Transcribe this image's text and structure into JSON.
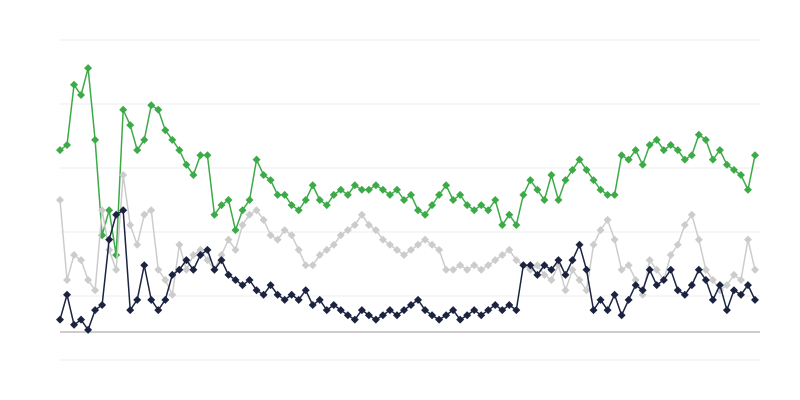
{
  "chart_data": {
    "type": "line",
    "x": [
      0,
      1,
      2,
      3,
      4,
      5,
      6,
      7,
      8,
      9,
      10,
      11,
      12,
      13,
      14,
      15,
      16,
      17,
      18,
      19,
      20,
      21,
      22,
      23,
      24,
      25,
      26,
      27,
      28,
      29,
      30,
      31,
      32,
      33,
      34,
      35,
      36,
      37,
      38,
      39,
      40,
      41,
      42,
      43,
      44,
      45,
      46,
      47,
      48,
      49,
      50,
      51,
      52,
      53,
      54,
      55,
      56,
      57,
      58,
      59,
      60,
      61,
      62,
      63,
      64,
      65,
      66,
      67,
      68,
      69,
      70,
      71,
      72,
      73,
      74,
      75,
      76,
      77,
      78,
      79,
      80,
      81,
      82,
      83,
      84,
      85,
      86,
      87,
      88,
      89,
      90,
      91,
      92,
      93,
      94,
      95,
      96,
      97,
      98,
      99
    ],
    "xlim": [
      0,
      99
    ],
    "ylim": [
      0,
      5
    ],
    "yticks": [
      0,
      1,
      2,
      3,
      4,
      5
    ],
    "grid": true,
    "series": [
      {
        "color": "#3cab47",
        "values": [
          3.28,
          3.36,
          4.3,
          4.14,
          4.56,
          3.44,
          1.95,
          2.34,
          1.64,
          3.91,
          3.67,
          3.28,
          3.44,
          3.98,
          3.91,
          3.59,
          3.44,
          3.28,
          3.05,
          2.89,
          3.2,
          3.2,
          2.27,
          2.42,
          2.5,
          2.03,
          2.34,
          2.5,
          3.13,
          2.89,
          2.81,
          2.58,
          2.58,
          2.42,
          2.34,
          2.5,
          2.73,
          2.5,
          2.42,
          2.58,
          2.66,
          2.58,
          2.73,
          2.66,
          2.66,
          2.73,
          2.66,
          2.58,
          2.66,
          2.5,
          2.58,
          2.34,
          2.27,
          2.42,
          2.58,
          2.73,
          2.5,
          2.58,
          2.42,
          2.34,
          2.42,
          2.34,
          2.5,
          2.11,
          2.27,
          2.11,
          2.58,
          2.81,
          2.66,
          2.5,
          2.89,
          2.5,
          2.81,
          2.97,
          3.13,
          2.97,
          2.81,
          2.66,
          2.58,
          2.58,
          3.2,
          3.13,
          3.28,
          3.05,
          3.36,
          3.44,
          3.28,
          3.36,
          3.28,
          3.13,
          3.2,
          3.52,
          3.44,
          3.13,
          3.28,
          3.05,
          2.97,
          2.89,
          2.66,
          3.2
        ]
      },
      {
        "color": "#cccccc",
        "values": [
          2.5,
          1.25,
          1.64,
          1.56,
          1.25,
          1.09,
          2.34,
          1.72,
          1.41,
          2.89,
          2.11,
          1.8,
          2.27,
          2.34,
          1.41,
          1.25,
          1.02,
          1.8,
          1.41,
          1.64,
          1.72,
          1.56,
          1.41,
          1.64,
          1.88,
          1.72,
          2.11,
          2.27,
          2.34,
          2.19,
          1.95,
          1.88,
          2.03,
          1.95,
          1.72,
          1.48,
          1.48,
          1.64,
          1.72,
          1.8,
          1.95,
          2.03,
          2.11,
          2.27,
          2.11,
          2.03,
          1.88,
          1.8,
          1.72,
          1.64,
          1.72,
          1.8,
          1.88,
          1.8,
          1.72,
          1.41,
          1.41,
          1.48,
          1.41,
          1.48,
          1.41,
          1.48,
          1.56,
          1.64,
          1.72,
          1.56,
          1.48,
          1.41,
          1.48,
          1.33,
          1.25,
          1.48,
          1.09,
          1.41,
          1.25,
          1.09,
          1.8,
          2.03,
          2.19,
          1.88,
          1.41,
          1.48,
          1.25,
          1.02,
          1.56,
          1.41,
          1.25,
          1.64,
          1.8,
          2.11,
          2.27,
          1.88,
          1.41,
          1.25,
          1.09,
          1.17,
          1.33,
          1.25,
          1.88,
          1.41
        ]
      },
      {
        "color": "#1b2340",
        "values": [
          0.63,
          1.02,
          0.55,
          0.63,
          0.47,
          0.78,
          0.86,
          1.88,
          2.27,
          2.34,
          0.78,
          0.94,
          1.48,
          0.94,
          0.78,
          0.94,
          1.33,
          1.41,
          1.56,
          1.41,
          1.64,
          1.72,
          1.41,
          1.56,
          1.33,
          1.25,
          1.17,
          1.25,
          1.09,
          1.02,
          1.17,
          1.02,
          0.94,
          1.02,
          0.94,
          1.09,
          0.86,
          0.94,
          0.78,
          0.86,
          0.78,
          0.7,
          0.63,
          0.78,
          0.7,
          0.63,
          0.7,
          0.78,
          0.7,
          0.78,
          0.86,
          0.94,
          0.78,
          0.7,
          0.63,
          0.7,
          0.78,
          0.63,
          0.7,
          0.78,
          0.7,
          0.78,
          0.86,
          0.78,
          0.86,
          0.78,
          1.48,
          1.48,
          1.33,
          1.48,
          1.41,
          1.56,
          1.33,
          1.56,
          1.8,
          1.41,
          0.78,
          0.94,
          0.78,
          1.02,
          0.7,
          0.94,
          1.17,
          1.09,
          1.41,
          1.17,
          1.25,
          1.41,
          1.09,
          1.02,
          1.17,
          1.41,
          1.25,
          0.94,
          1.17,
          0.78,
          1.09,
          1.02,
          1.17,
          0.94
        ]
      }
    ]
  }
}
